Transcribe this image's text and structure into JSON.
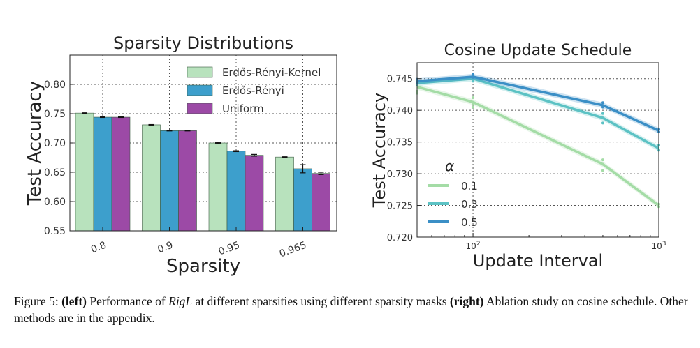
{
  "chart_data": [
    {
      "type": "bar",
      "title": "Sparsity Distributions",
      "xlabel": "Sparsity",
      "ylabel": "Test Accuracy",
      "categories": [
        "0.8",
        "0.9",
        "0.95",
        "0.965"
      ],
      "ylim": [
        0.55,
        0.85
      ],
      "yticks": [
        0.55,
        0.6,
        0.65,
        0.7,
        0.75,
        0.8
      ],
      "ytick_labels": [
        "0.55",
        "0.60",
        "0.65",
        "0.70",
        "0.75",
        "0.80"
      ],
      "grid": true,
      "legend": "top-right",
      "series": [
        {
          "name": "Erdős-Rényi-Kernel",
          "color": "#b8e2bd",
          "values": [
            0.751,
            0.731,
            0.7,
            0.676
          ],
          "errors": [
            0.0005,
            0.0005,
            0.0008,
            0.0005
          ]
        },
        {
          "name": "Erdős-Rényi",
          "color": "#3d9fcc",
          "values": [
            0.744,
            0.721,
            0.686,
            0.656
          ],
          "errors": [
            0.0005,
            0.0005,
            0.0008,
            0.007
          ]
        },
        {
          "name": "Uniform",
          "color": "#9c4aa6",
          "values": [
            0.744,
            0.721,
            0.679,
            0.648
          ],
          "errors": [
            0.0005,
            0.0005,
            0.0015,
            0.002
          ]
        }
      ]
    },
    {
      "type": "line",
      "title": "Cosine Update Schedule",
      "xlabel": "Update Interval",
      "ylabel": "Test Accuracy",
      "xscale": "log",
      "xlim": [
        50,
        1000
      ],
      "xticks": [
        100,
        1000
      ],
      "xtick_labels": [
        {
          "base": "10",
          "exp": "2"
        },
        {
          "base": "10",
          "exp": "3"
        }
      ],
      "ylim": [
        0.72,
        0.7475
      ],
      "yticks": [
        0.72,
        0.725,
        0.73,
        0.735,
        0.74,
        0.745
      ],
      "ytick_labels": [
        "0.720",
        "0.725",
        "0.730",
        "0.735",
        "0.740",
        "0.745"
      ],
      "grid": true,
      "legend": "lower-left",
      "legend_title": "α",
      "series": [
        {
          "name": "0.1",
          "color": "#a4dca6",
          "x": [
            50,
            100,
            500,
            1000
          ],
          "values": [
            0.7437,
            0.7413,
            0.7315,
            0.725
          ],
          "scatter": [
            [
              50,
              0.7443
            ],
            [
              50,
              0.743
            ],
            [
              50,
              0.7427
            ],
            [
              100,
              0.742
            ],
            [
              100,
              0.741
            ],
            [
              100,
              0.7405
            ],
            [
              500,
              0.7322
            ],
            [
              500,
              0.7315
            ],
            [
              500,
              0.7305
            ],
            [
              1000,
              0.7252
            ],
            [
              1000,
              0.7248
            ]
          ]
        },
        {
          "name": "0.3",
          "color": "#5cc2c4",
          "x": [
            50,
            100,
            500,
            1000
          ],
          "values": [
            0.7443,
            0.745,
            0.7388,
            0.734
          ],
          "scatter": [
            [
              50,
              0.7446
            ],
            [
              50,
              0.744
            ],
            [
              100,
              0.7455
            ],
            [
              100,
              0.7448
            ],
            [
              100,
              0.7446
            ],
            [
              500,
              0.7395
            ],
            [
              500,
              0.7388
            ],
            [
              500,
              0.738
            ],
            [
              1000,
              0.7345
            ],
            [
              1000,
              0.7337
            ]
          ]
        },
        {
          "name": "0.5",
          "color": "#3b8fc6",
          "x": [
            50,
            100,
            500,
            1000
          ],
          "values": [
            0.7446,
            0.7453,
            0.7408,
            0.7368
          ],
          "scatter": [
            [
              50,
              0.7449
            ],
            [
              50,
              0.7444
            ],
            [
              100,
              0.7457
            ],
            [
              100,
              0.7452
            ],
            [
              500,
              0.7412
            ],
            [
              500,
              0.7405
            ],
            [
              1000,
              0.737
            ],
            [
              1000,
              0.7366
            ]
          ]
        }
      ]
    }
  ],
  "caption": {
    "prefix": "Figure 5: ",
    "left_tag": "(left)",
    "text1": " Performance of ",
    "method": "RigL",
    "text2": " at different sparsities using different sparsity masks ",
    "right_tag": "(right)",
    "text3": " Ablation study on cosine schedule. Other methods are in the appendix."
  }
}
